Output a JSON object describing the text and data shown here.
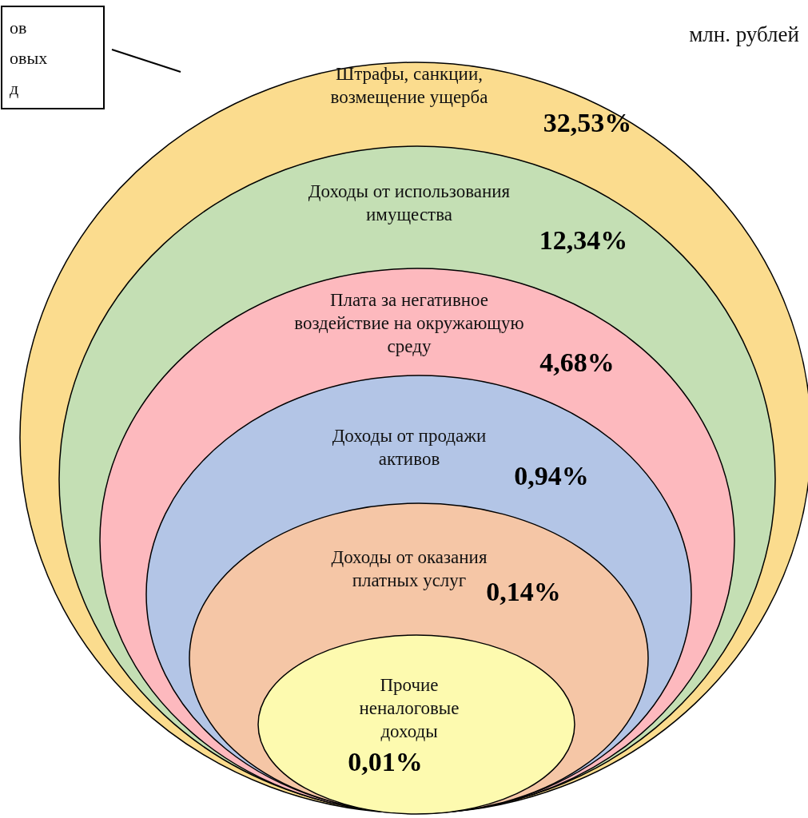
{
  "chart_data": {
    "type": "other",
    "categories": [
      "Штрафы, санкции,\nвозмещение ущерба",
      "Доходы от использования\nимущества",
      "Плата за негативное\nвоздействие на окружающую\nсреду",
      "Доходы от продажи\nактивов",
      "Доходы от оказания\nплатных услуг",
      "Прочие\nненалоговые\nдоходы"
    ],
    "values": [
      32.53,
      12.34,
      4.68,
      0.94,
      0.14,
      0.01
    ],
    "value_labels": [
      "32,53%",
      "12,34%",
      "4,68%",
      "0,94%",
      "0,14%",
      "0,01%"
    ],
    "colors": [
      "#fbdc8e",
      "#c4dfb4",
      "#fdb9be",
      "#b3c5e6",
      "#f5c6a6",
      "#fdfaaf"
    ],
    "annotations": [
      "млн. рублей",
      "ов\nовых\nд"
    ]
  }
}
